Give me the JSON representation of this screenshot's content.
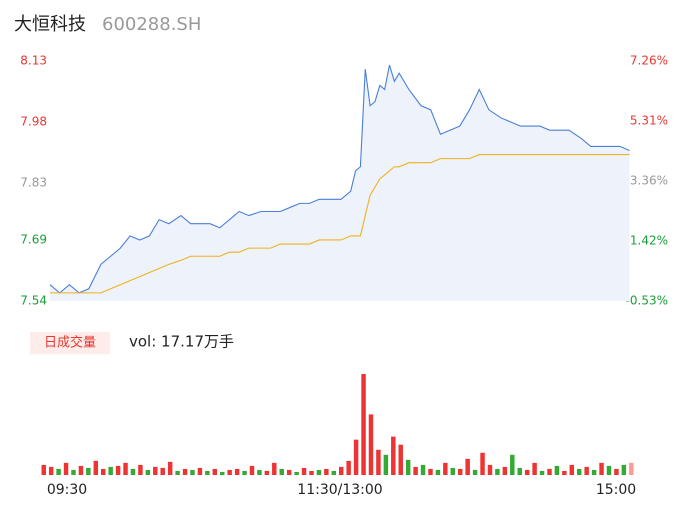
{
  "header": {
    "name": "大恒科技",
    "code": "600288.SH"
  },
  "chart_data": [
    {
      "type": "line",
      "xlim": [
        0,
        240
      ],
      "xticks": [
        {
          "value": 0,
          "label": "09:30"
        },
        {
          "value": 120,
          "label": "11:30/13:00"
        },
        {
          "value": 240,
          "label": "15:00"
        }
      ],
      "ylim": [
        7.54,
        8.13
      ],
      "yticks": [
        7.54,
        7.69,
        7.83,
        7.98,
        8.13
      ],
      "ytick_colors": [
        "#1a9e3a",
        "#1a9e3a",
        "#999999",
        "#e8382f",
        "#e8382f"
      ],
      "y2lim": [
        -0.53,
        7.26
      ],
      "y2ticks": [
        {
          "value": -0.53,
          "label": "-0.53%"
        },
        {
          "value": 1.42,
          "label": "1.42%"
        },
        {
          "value": 3.36,
          "label": "3.36%"
        },
        {
          "value": 5.31,
          "label": "5.31%"
        },
        {
          "value": 7.26,
          "label": "7.26%"
        }
      ],
      "fill_color": "#eef3fb",
      "x": [
        0,
        4,
        8,
        12,
        16,
        21,
        25,
        29,
        33,
        37,
        41,
        45,
        49,
        54,
        58,
        62,
        66,
        70,
        74,
        78,
        82,
        87,
        91,
        95,
        99,
        103,
        107,
        111,
        115,
        120,
        124,
        126,
        128,
        130,
        132,
        134,
        136,
        138,
        140,
        142,
        144,
        148,
        153,
        157,
        161,
        165,
        169,
        173,
        177,
        181,
        186,
        190,
        194,
        198,
        202,
        206,
        210,
        214,
        219,
        223,
        227,
        231,
        235,
        239
      ],
      "series": [
        {
          "color": "#4a7fd8",
          "values": [
            7.58,
            7.56,
            7.58,
            7.56,
            7.57,
            7.63,
            7.65,
            7.67,
            7.7,
            7.69,
            7.7,
            7.74,
            7.73,
            7.75,
            7.73,
            7.73,
            7.73,
            7.72,
            7.74,
            7.76,
            7.75,
            7.76,
            7.76,
            7.76,
            7.77,
            7.78,
            7.78,
            7.79,
            7.79,
            7.79,
            7.81,
            7.86,
            7.87,
            8.11,
            8.02,
            8.03,
            8.07,
            8.06,
            8.12,
            8.08,
            8.1,
            8.06,
            8.02,
            8.01,
            7.95,
            7.96,
            7.97,
            8.01,
            8.06,
            8.01,
            7.99,
            7.98,
            7.97,
            7.97,
            7.97,
            7.96,
            7.96,
            7.96,
            7.94,
            7.92,
            7.92,
            7.92,
            7.92,
            7.91
          ]
        },
        {
          "color": "#f0b020",
          "values": [
            7.56,
            7.56,
            7.56,
            7.56,
            7.56,
            7.56,
            7.57,
            7.58,
            7.59,
            7.6,
            7.61,
            7.62,
            7.63,
            7.64,
            7.65,
            7.65,
            7.65,
            7.65,
            7.66,
            7.66,
            7.67,
            7.67,
            7.67,
            7.68,
            7.68,
            7.68,
            7.68,
            7.69,
            7.69,
            7.69,
            7.7,
            7.7,
            7.7,
            7.75,
            7.8,
            7.82,
            7.84,
            7.85,
            7.86,
            7.87,
            7.87,
            7.88,
            7.88,
            7.88,
            7.89,
            7.89,
            7.89,
            7.89,
            7.9,
            7.9,
            7.9,
            7.9,
            7.9,
            7.9,
            7.9,
            7.9,
            7.9,
            7.9,
            7.9,
            7.9,
            7.9,
            7.9,
            7.9,
            7.9
          ]
        }
      ]
    },
    {
      "type": "bar",
      "label": "日成交量",
      "volume_text": "vol: 17.17万手",
      "ylim": [
        0,
        102
      ],
      "values": [
        10,
        8,
        6,
        12,
        5,
        9,
        7,
        14,
        6,
        8,
        9,
        12,
        6,
        10,
        5,
        8,
        7,
        13,
        4,
        6,
        5,
        7,
        4,
        6,
        3,
        5,
        6,
        4,
        9,
        5,
        4,
        12,
        6,
        5,
        3,
        7,
        4,
        5,
        6,
        4,
        8,
        14,
        35,
        100,
        60,
        25,
        20,
        38,
        30,
        15,
        8,
        10,
        6,
        5,
        12,
        7,
        6,
        16,
        5,
        22,
        10,
        6,
        8,
        20,
        7,
        5,
        12,
        4,
        6,
        9,
        4,
        10,
        6,
        8,
        5,
        12,
        9,
        6,
        10,
        12
      ],
      "colors": [
        "#e33",
        "#e33",
        "#3a3",
        "#e33",
        "#3a3",
        "#e33",
        "#3a3",
        "#e33",
        "#e33",
        "#3a3",
        "#e33",
        "#e33",
        "#3a3",
        "#e33",
        "#3a3",
        "#e33",
        "#e33",
        "#e33",
        "#3a3",
        "#e33",
        "#3a3",
        "#e33",
        "#3a3",
        "#e33",
        "#3a3",
        "#e33",
        "#e33",
        "#3a3",
        "#e33",
        "#3a3",
        "#e33",
        "#e33",
        "#3a3",
        "#e33",
        "#3a3",
        "#e33",
        "#e33",
        "#3a3",
        "#e33",
        "#3a3",
        "#e33",
        "#e33",
        "#e33",
        "#e33",
        "#e33",
        "#e33",
        "#3a3",
        "#e33",
        "#e33",
        "#3a3",
        "#e33",
        "#3a3",
        "#e33",
        "#3a3",
        "#e33",
        "#3a3",
        "#e33",
        "#e33",
        "#3a3",
        "#e33",
        "#e33",
        "#3a3",
        "#e33",
        "#3a3",
        "#3a3",
        "#e33",
        "#e33",
        "#3a3",
        "#e33",
        "#3a3",
        "#e33",
        "#e33",
        "#3a3",
        "#e33",
        "#3a3",
        "#e33",
        "#3a3",
        "#e33",
        "#3a3",
        "#f99"
      ]
    }
  ]
}
